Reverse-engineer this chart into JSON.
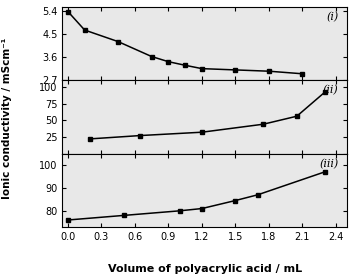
{
  "panel_i": {
    "x": [
      0.0,
      0.15,
      0.45,
      0.75,
      0.9,
      1.05,
      1.2,
      1.5,
      1.8,
      2.1
    ],
    "y": [
      5.37,
      4.65,
      4.2,
      3.62,
      3.42,
      3.28,
      3.15,
      3.1,
      3.05,
      2.95
    ],
    "ylim": [
      2.7,
      5.55
    ],
    "yticks": [
      2.7,
      3.6,
      4.5,
      5.4
    ],
    "yticklabels": [
      "2.7",
      "3.6",
      "4.5",
      "5.4"
    ],
    "label": "(i)"
  },
  "panel_ii": {
    "x": [
      0.2,
      0.65,
      1.2,
      1.75,
      2.05,
      2.3
    ],
    "y": [
      22,
      27,
      32,
      44,
      56,
      92
    ],
    "ylim": [
      0,
      110
    ],
    "yticks": [
      0,
      25,
      50,
      75,
      100
    ],
    "yticklabels": [
      "",
      "25",
      "50",
      "75",
      "100"
    ],
    "label": "(ii)"
  },
  "panel_iii": {
    "x": [
      0.0,
      0.5,
      1.0,
      1.2,
      1.5,
      1.7,
      2.3
    ],
    "y": [
      76,
      78,
      80,
      81,
      84.5,
      87,
      97
    ],
    "ylim": [
      73,
      105
    ],
    "yticks": [
      80,
      90,
      100
    ],
    "yticklabels": [
      "80",
      "90",
      "100"
    ],
    "label": "(iii)"
  },
  "xlabel": "Volume of polyacrylic acid / mL",
  "ylabel": "Ionic conductivity / mScm⁻¹",
  "xticks": [
    0.0,
    0.3,
    0.6,
    0.9,
    1.2,
    1.5,
    1.8,
    2.1,
    2.4
  ],
  "xticklabels": [
    "0.0",
    "0.3",
    "0.6",
    "0.9",
    "1.2",
    "1.5",
    "1.8",
    "2.1",
    "2.4"
  ],
  "xlim": [
    -0.05,
    2.5
  ],
  "line_color": "black",
  "marker": "s",
  "markersize": 3.5,
  "linewidth": 1.1,
  "bg_color": "#e8e8e8"
}
